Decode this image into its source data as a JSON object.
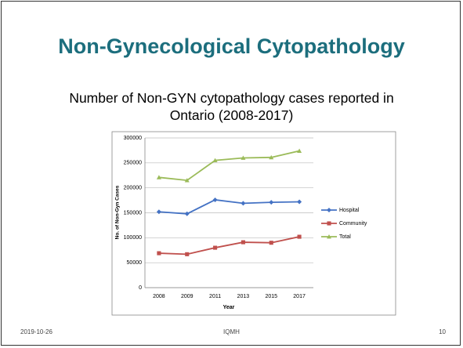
{
  "slide": {
    "title": "Non-Gynecological Cytopathology",
    "subtitle": "Number of Non-GYN cytopathology cases reported in Ontario (2008-2017)",
    "date": "2019-10-26",
    "footer": "IQMH",
    "page_number": "10"
  },
  "chart_data": {
    "type": "line",
    "categories": [
      "2008",
      "2009",
      "2011",
      "2013",
      "2015",
      "2017"
    ],
    "series": [
      {
        "name": "Hospital",
        "color": "#4472c4",
        "marker": "diamond",
        "values": [
          152000,
          148000,
          176000,
          169000,
          171000,
          172000
        ]
      },
      {
        "name": "Community",
        "color": "#c0504d",
        "marker": "square",
        "values": [
          69000,
          67000,
          80000,
          91000,
          90000,
          102000
        ]
      },
      {
        "name": "Total",
        "color": "#9bbb59",
        "marker": "triangle",
        "values": [
          221000,
          215000,
          255000,
          260000,
          261000,
          274000
        ]
      }
    ],
    "xlabel": "Year",
    "ylabel": "No. of Non-Gyn Cases",
    "ylim": [
      0,
      300000
    ],
    "yticks": [
      0,
      50000,
      100000,
      150000,
      200000,
      250000,
      300000
    ],
    "grid": true,
    "legend": "right"
  }
}
